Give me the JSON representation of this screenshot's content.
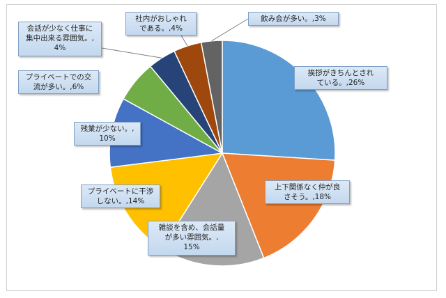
{
  "chart_data": {
    "type": "pie",
    "slices": [
      {
        "label": "挨拶がきちんとされている。",
        "value": 26,
        "color": "#5b9bd5",
        "text_line1": "挨拶がきちんとされ",
        "text_line2": "ている。,26%",
        "text_line3": ""
      },
      {
        "label": "上下関係なく仲が良さそう。",
        "value": 18,
        "color": "#ed7d31",
        "text_line1": "上下関係なく仲が良",
        "text_line2": "さそう。,18%",
        "text_line3": ""
      },
      {
        "label": "雑談を含め、会話量が多い雰囲気。",
        "value": 15,
        "color": "#a5a5a5",
        "text_line1": "雑談を含め、会話量",
        "text_line2": "が多い雰囲気。,",
        "text_line3": "15%"
      },
      {
        "label": "プライベートに干渉しない。",
        "value": 14,
        "color": "#ffc000",
        "text_line1": "プライベートに干渉",
        "text_line2": "しない。,14%",
        "text_line3": ""
      },
      {
        "label": "残業が少ない。",
        "value": 10,
        "color": "#4472c4",
        "text_line1": "残業が少ない。,",
        "text_line2": "10%",
        "text_line3": ""
      },
      {
        "label": "プライベートでの交流が多い。",
        "value": 6,
        "color": "#70ad47",
        "text_line1": "プライベートでの交",
        "text_line2": "流が多い。,6%",
        "text_line3": ""
      },
      {
        "label": "会話が少なく仕事に集中出来る雰囲気。",
        "value": 4,
        "color": "#264478",
        "text_line1": "会話が少なく仕事に",
        "text_line2": "集中出来る雰囲気。,",
        "text_line3": "4%"
      },
      {
        "label": "社内がおしゃれである。",
        "value": 4,
        "color": "#9e480e",
        "text_line1": "社内がおしゃれ",
        "text_line2": "である。,4%",
        "text_line3": ""
      },
      {
        "label": "飲み会が多い。",
        "value": 3,
        "color": "#636363",
        "text_line1": "飲み会が多い。,3%",
        "text_line2": "",
        "text_line3": ""
      }
    ]
  }
}
